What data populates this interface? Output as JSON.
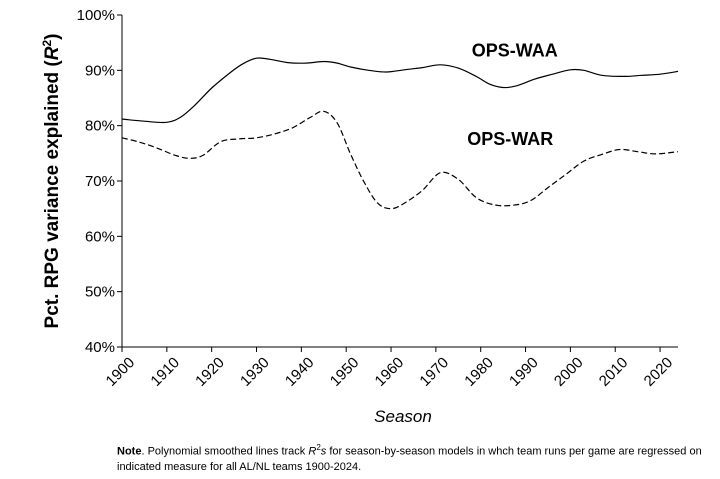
{
  "chart_data": {
    "type": "line",
    "title": "",
    "xlabel": "Season",
    "ylabel_prefix": "Pct. RPG variance explained (",
    "ylabel_math": "R",
    "ylabel_sup": "2",
    "ylabel_suffix": ")",
    "xlim": [
      1900,
      2024
    ],
    "ylim": [
      40,
      100
    ],
    "x_ticks": [
      1900,
      1910,
      1920,
      1930,
      1940,
      1950,
      1960,
      1970,
      1980,
      1990,
      2000,
      2010,
      2020
    ],
    "y_ticks": [
      {
        "value": 40,
        "label": "40%"
      },
      {
        "value": 50,
        "label": "50%"
      },
      {
        "value": 60,
        "label": "60%"
      },
      {
        "value": 70,
        "label": "70%"
      },
      {
        "value": 80,
        "label": "80%"
      },
      {
        "value": 90,
        "label": "90%"
      },
      {
        "value": 100,
        "label": "100%"
      }
    ],
    "grid": false,
    "series": [
      {
        "name": "OPS-WAA",
        "style": "solid",
        "x": [
          1900,
          1905,
          1910,
          1913,
          1916,
          1920,
          1924,
          1927,
          1930,
          1933,
          1937,
          1941,
          1945,
          1948,
          1951,
          1955,
          1959,
          1963,
          1967,
          1971,
          1975,
          1979,
          1982,
          1985,
          1988,
          1992,
          1996,
          2000,
          2003,
          2007,
          2012,
          2016,
          2020,
          2024
        ],
        "y": [
          81.2,
          80.8,
          80.6,
          81.5,
          83.5,
          86.8,
          89.5,
          91.2,
          92.2,
          92.0,
          91.4,
          91.3,
          91.6,
          91.3,
          90.6,
          90.0,
          89.7,
          90.1,
          90.5,
          91.0,
          90.4,
          88.9,
          87.5,
          86.9,
          87.2,
          88.4,
          89.3,
          90.1,
          90.0,
          89.1,
          88.9,
          89.1,
          89.3,
          89.8
        ]
      },
      {
        "name": "OPS-WAR",
        "style": "dashed",
        "x": [
          1900,
          1904,
          1908,
          1912,
          1915,
          1918,
          1922,
          1926,
          1930,
          1934,
          1938,
          1942,
          1945,
          1948,
          1951,
          1954,
          1957,
          1960,
          1963,
          1967,
          1971,
          1975,
          1979,
          1983,
          1987,
          1991,
          1995,
          1999,
          2003,
          2007,
          2011,
          2015,
          2019,
          2024
        ],
        "y": [
          77.8,
          77.0,
          75.9,
          74.6,
          74.1,
          74.6,
          77.1,
          77.6,
          77.8,
          78.5,
          79.6,
          81.5,
          82.6,
          80.5,
          74.8,
          69.8,
          66.0,
          65.0,
          66.0,
          68.3,
          71.5,
          70.3,
          67.0,
          65.7,
          65.6,
          66.4,
          68.8,
          71.2,
          73.6,
          74.8,
          75.7,
          75.3,
          74.9,
          75.3
        ]
      }
    ],
    "annotations": [
      {
        "text": "OPS-WAA",
        "x": 1978,
        "y": 92.5
      },
      {
        "text": "OPS-WAR",
        "x": 1977,
        "y": 76.5
      }
    ]
  },
  "note": {
    "lead": "Note",
    "text1": ". Polynomial smoothed lines track  ",
    "math": "R",
    "sup": "2",
    "math_suffix": "s",
    "text2": " for season-by-season models in whch team runs per game are regressed on indicated measure for all AL/NL teams 1900-2024."
  }
}
